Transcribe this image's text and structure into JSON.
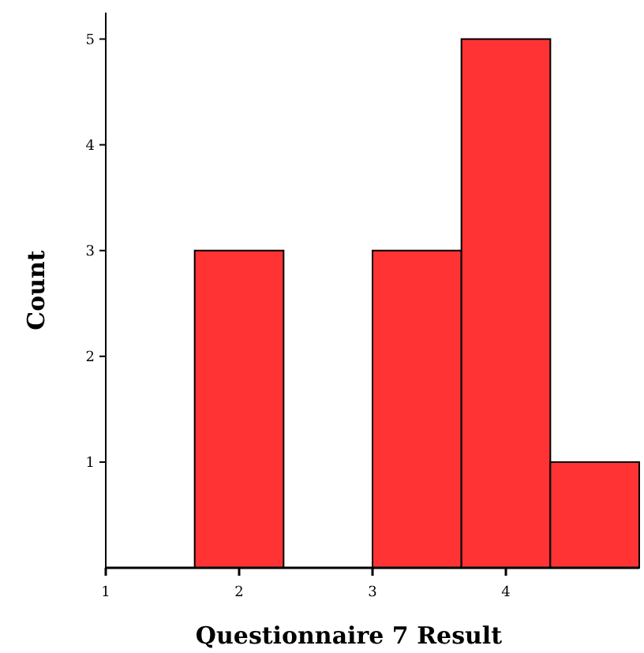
{
  "chart_data": {
    "type": "histogram",
    "xlabel": "Questionnaire 7 Result",
    "ylabel": "Count",
    "bins": [
      1,
      1.6667,
      2.3333,
      3,
      3.6667,
      4.3333,
      5
    ],
    "values": [
      0,
      3,
      0,
      3,
      5,
      1
    ],
    "color": "#ff3333",
    "xlim": [
      1,
      5
    ],
    "xticks": [
      1,
      2,
      3,
      4
    ],
    "ylim": [
      0,
      5.25
    ],
    "yticks": [
      1,
      2,
      3,
      4,
      5
    ],
    "grid": false
  }
}
